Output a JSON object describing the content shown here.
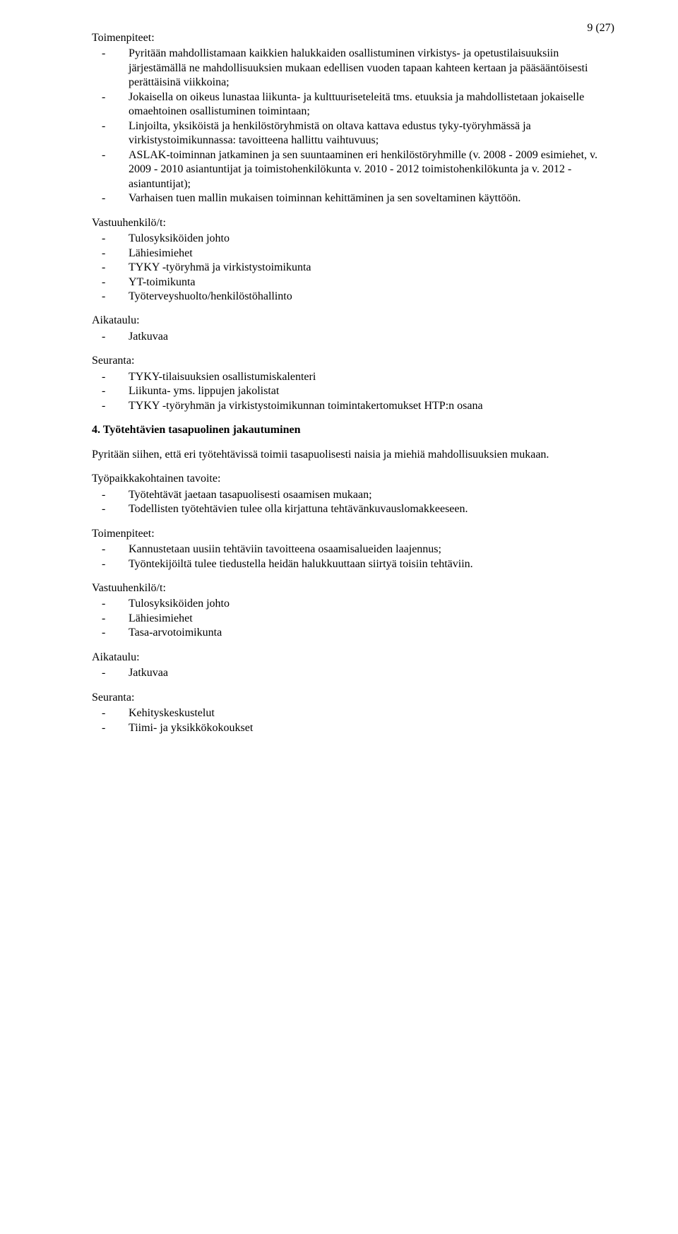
{
  "pageNumber": "9 (27)",
  "sec1": {
    "label": "Toimenpiteet:",
    "items": [
      "Pyritään mahdollistamaan kaikkien halukkaiden osallistuminen virkistys- ja opetustilaisuuksiin järjestämällä ne mahdollisuuksien mukaan edellisen vuoden tapaan kahteen kertaan ja pääsääntöisesti perättäisinä viikkoina;",
      "Jokaisella on oikeus lunastaa liikunta- ja kulttuuriseteleitä tms. etuuksia ja mahdollistetaan jokaiselle omaehtoinen osallistuminen toimintaan;",
      "Linjoilta, yksiköistä ja henkilöstöryhmistä on oltava kattava edustus tyky-työryhmässä ja virkistystoimikunnassa: tavoitteena hallittu vaihtuvuus;",
      "ASLAK-toiminnan jatkaminen ja sen suuntaaminen eri henkilöstöryhmille (v. 2008 - 2009 esimiehet, v. 2009 - 2010 asiantuntijat ja toimistohenkilökunta v. 2010 - 2012 toimistohenkilökunta ja v. 2012 - asiantuntijat);",
      "Varhaisen tuen mallin mukaisen toiminnan kehittäminen ja sen soveltaminen käyttöön."
    ]
  },
  "sec2": {
    "label": "Vastuuhenkilö/t:",
    "items": [
      "Tulosyksiköiden johto",
      "Lähiesimiehet",
      "TYKY -työryhmä ja virkistystoimikunta",
      "YT-toimikunta",
      "Työterveyshuolto/henkilöstöhallinto"
    ]
  },
  "sec3": {
    "label": "Aikataulu:",
    "items": [
      "Jatkuvaa"
    ]
  },
  "sec4": {
    "label": "Seuranta:",
    "items": [
      "TYKY-tilaisuuksien osallistumiskalenteri",
      "Liikunta- yms. lippujen jakolistat",
      "TYKY -työryhmän ja virkistystoimikunnan toimintakertomukset HTP:n osana"
    ]
  },
  "heading4": "4.  Työtehtävien tasapuolinen jakautuminen",
  "para4": "Pyritään siihen, että eri työtehtävissä toimii tasapuolisesti naisia ja miehiä mahdollisuuksien mukaan.",
  "sec5": {
    "label": "Työpaikkakohtainen tavoite:",
    "items": [
      "Työtehtävät jaetaan tasapuolisesti osaamisen mukaan;",
      "Todellisten työtehtävien tulee olla kirjattuna tehtävänkuvauslomakkeeseen."
    ]
  },
  "sec6": {
    "label": "Toimenpiteet:",
    "items": [
      "Kannustetaan uusiin tehtäviin tavoitteena osaamisalueiden laajennus;",
      "Työntekijöiltä tulee tiedustella heidän halukkuuttaan siirtyä toisiin tehtäviin."
    ]
  },
  "sec7": {
    "label": "Vastuuhenkilö/t:",
    "items": [
      "Tulosyksiköiden johto",
      "Lähiesimiehet",
      "Tasa-arvotoimikunta"
    ]
  },
  "sec8": {
    "label": "Aikataulu:",
    "items": [
      "Jatkuvaa"
    ]
  },
  "sec9": {
    "label": "Seuranta:",
    "items": [
      "Kehityskeskustelut",
      "Tiimi- ja yksikkökokoukset"
    ]
  },
  "dash": "-"
}
